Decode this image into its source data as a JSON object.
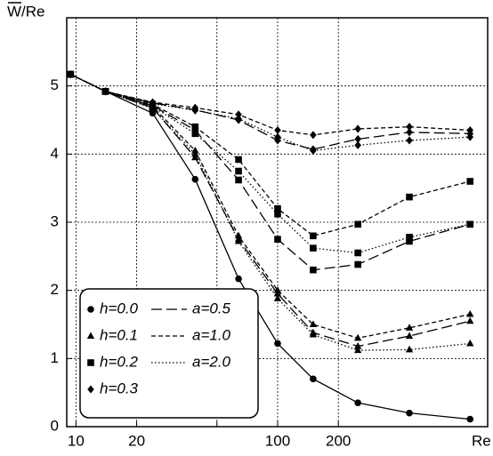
{
  "chart_data": {
    "type": "line",
    "ylabel": "W/Re",
    "xlabel": "Re",
    "x": [
      9.4,
      14,
      24,
      39,
      64,
      100,
      150,
      250,
      450,
      900
    ],
    "xlim": [
      9,
      1100
    ],
    "xscale": "log",
    "xticks": [
      10,
      20,
      {
        "value": 50,
        "label": null
      },
      100,
      200
    ],
    "ylim": [
      0,
      6
    ],
    "yticks": [
      0,
      1,
      2,
      3,
      4,
      5
    ],
    "grid": true,
    "legend_position": "lower left",
    "series": [
      {
        "color": "#000000",
        "marker": "circle",
        "dash": "solid",
        "values": [
          5.17,
          4.92,
          4.6,
          3.63,
          2.17,
          1.22,
          0.7,
          0.35,
          0.2,
          0.11
        ]
      },
      {
        "color": "#000000",
        "marker": "triangle",
        "dash": "long",
        "values": [
          5.17,
          4.92,
          4.68,
          3.95,
          2.75,
          1.95,
          1.38,
          1.18,
          1.33,
          1.55
        ]
      },
      {
        "color": "#000000",
        "marker": "triangle",
        "dash": "dashed",
        "values": [
          5.17,
          4.92,
          4.7,
          4.05,
          2.8,
          2.0,
          1.5,
          1.3,
          1.45,
          1.65
        ]
      },
      {
        "color": "#000000",
        "marker": "triangle",
        "dash": "dotted",
        "values": [
          5.17,
          4.92,
          4.67,
          4.0,
          2.72,
          1.88,
          1.35,
          1.12,
          1.13,
          1.22
        ]
      },
      {
        "color": "#000000",
        "marker": "square",
        "dash": "long",
        "values": [
          5.17,
          4.92,
          4.71,
          4.35,
          3.62,
          2.75,
          2.3,
          2.38,
          2.72,
          2.97
        ]
      },
      {
        "color": "#000000",
        "marker": "square",
        "dash": "dashed",
        "values": [
          5.17,
          4.92,
          4.73,
          4.4,
          3.92,
          3.2,
          2.8,
          2.97,
          3.37,
          3.6
        ]
      },
      {
        "color": "#000000",
        "marker": "square",
        "dash": "dotted",
        "values": [
          5.17,
          4.92,
          4.7,
          4.3,
          3.75,
          3.12,
          2.62,
          2.55,
          2.78,
          2.97
        ]
      },
      {
        "color": "#000000",
        "marker": "diamond",
        "dash": "long",
        "values": [
          5.17,
          4.92,
          4.75,
          4.65,
          4.5,
          4.2,
          4.07,
          4.22,
          4.32,
          4.3
        ]
      },
      {
        "color": "#000000",
        "marker": "diamond",
        "dash": "dashed",
        "values": [
          5.17,
          4.92,
          4.76,
          4.68,
          4.58,
          4.35,
          4.28,
          4.37,
          4.4,
          4.35
        ]
      },
      {
        "color": "#000000",
        "marker": "diamond",
        "dash": "dotted",
        "values": [
          5.17,
          4.92,
          4.74,
          4.64,
          4.52,
          4.25,
          4.05,
          4.13,
          4.2,
          4.25
        ]
      }
    ],
    "legend": {
      "markers": [
        {
          "label": "h=0.0",
          "marker": "circle"
        },
        {
          "label": "h=0.1",
          "marker": "triangle"
        },
        {
          "label": "h=0.2",
          "marker": "square"
        },
        {
          "label": "h=0.3",
          "marker": "diamond"
        }
      ],
      "lines": [
        {
          "label": "a=0.5",
          "dash": "long"
        },
        {
          "label": "a=1.0",
          "dash": "dashed"
        },
        {
          "label": "a=2.0",
          "dash": "dotted"
        }
      ]
    }
  }
}
